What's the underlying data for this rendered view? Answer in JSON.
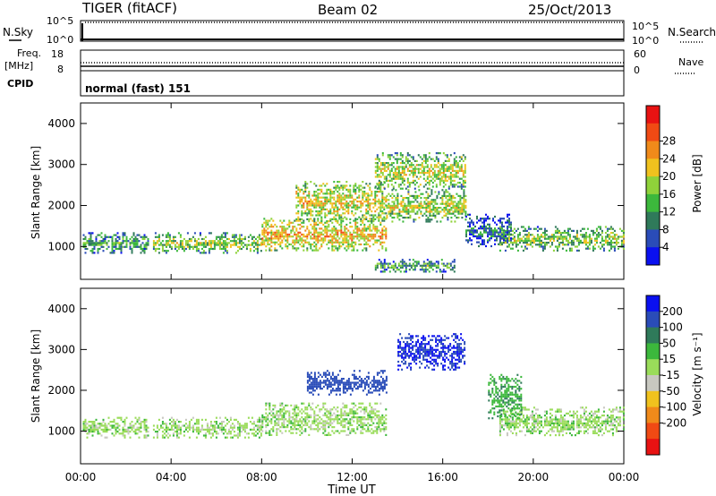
{
  "header": {
    "radar_title": "TIGER (fitACF)",
    "beam": "Beam 02",
    "date": "25/Oct/2013"
  },
  "status_panels": {
    "nsky_label": "N.Sky",
    "nsky_ticks": [
      "10^5",
      "10^0"
    ],
    "nsearch_label": "N.Search",
    "nsearch_ticks": [
      "10^5",
      "10^0"
    ],
    "freq_label_line1": "Freq.",
    "freq_label_line2": "[MHz]",
    "freq_ticks": [
      "18",
      "8"
    ],
    "nave_label": "Nave",
    "nave_ticks": [
      "60",
      "0"
    ],
    "cpid_label": "CPID",
    "cpid_value": "normal (fast) 151"
  },
  "x_axis": {
    "label": "Time UT",
    "ticks": [
      "00:00",
      "04:00",
      "08:00",
      "12:00",
      "16:00",
      "20:00",
      "00:00"
    ]
  },
  "y_axis": {
    "label": "Slant Range [km]",
    "ticks": [
      "1000",
      "2000",
      "3000",
      "4000"
    ]
  },
  "power_scale": {
    "label": "Power [dB]",
    "ticks": [
      "4",
      "8",
      "12",
      "16",
      "20",
      "24",
      "28"
    ],
    "colors": [
      "#0a10f0",
      "#2a4cb8",
      "#2f7a5a",
      "#3cb83c",
      "#8fd23a",
      "#f0c21e",
      "#f08a1a",
      "#f04a14",
      "#e81212"
    ]
  },
  "velocity_scale": {
    "label": "Velocity [m s⁻¹]",
    "ticks": [
      "200",
      "100",
      "50",
      "15",
      "-15",
      "-50",
      "-100",
      "-200"
    ],
    "colors": [
      "#0a10f0",
      "#2a4cb8",
      "#2f7a5a",
      "#3cb83c",
      "#9adc5a",
      "#c8c8c0",
      "#f0c21e",
      "#f08a1a",
      "#f04a14",
      "#e81212"
    ]
  },
  "chart_data": [
    {
      "type": "heatmap",
      "name_printed": "Power [dB]",
      "x_unit": "hours UT",
      "xlim": [
        0,
        24
      ],
      "ylim": [
        200,
        4500
      ],
      "ylabel": "Slant Range [km]",
      "xlabel": "Time UT",
      "colorbar_ticks": [
        4,
        8,
        12,
        16,
        20,
        24,
        28
      ],
      "scatter_bands": [
        {
          "t_start": 0.1,
          "t_end": 3.0,
          "r_low": 850,
          "r_high": 1350,
          "power": 14
        },
        {
          "t_start": 3.2,
          "t_end": 8.0,
          "r_low": 850,
          "r_high": 1350,
          "power": 18
        },
        {
          "t_start": 8.0,
          "t_end": 13.5,
          "r_low": 900,
          "r_high": 1700,
          "power": 24
        },
        {
          "t_start": 13.5,
          "t_end": 17.0,
          "r_low": 1600,
          "r_high": 2400,
          "power": 20
        },
        {
          "t_start": 9.5,
          "t_end": 13.5,
          "r_low": 1600,
          "r_high": 2600,
          "power": 22
        },
        {
          "t_start": 13.0,
          "t_end": 17.0,
          "r_low": 2400,
          "r_high": 3300,
          "power": 20
        },
        {
          "t_start": 18.5,
          "t_end": 24.0,
          "r_low": 900,
          "r_high": 1500,
          "power": 18
        },
        {
          "t_start": 17.0,
          "t_end": 19.0,
          "r_low": 1000,
          "r_high": 1800,
          "power": 10
        },
        {
          "t_start": 13.0,
          "t_end": 16.5,
          "r_low": 400,
          "r_high": 700,
          "power": 14
        }
      ]
    },
    {
      "type": "heatmap",
      "name_printed": "Velocity [m s⁻¹]",
      "x_unit": "hours UT",
      "xlim": [
        0,
        24
      ],
      "ylim": [
        200,
        4500
      ],
      "ylabel": "Slant Range [km]",
      "xlabel": "Time UT",
      "colorbar_ticks": [
        200,
        100,
        50,
        15,
        -15,
        -50,
        -100,
        -200
      ],
      "scatter_bands": [
        {
          "t_start": 0.1,
          "t_end": 3.0,
          "r_low": 850,
          "r_high": 1350,
          "velocity": 0
        },
        {
          "t_start": 3.2,
          "t_end": 8.0,
          "r_low": 850,
          "r_high": 1350,
          "velocity": 0
        },
        {
          "t_start": 8.0,
          "t_end": 13.5,
          "r_low": 900,
          "r_high": 1700,
          "velocity": 0
        },
        {
          "t_start": 10.0,
          "t_end": 13.5,
          "r_low": 1900,
          "r_high": 2500,
          "velocity": 150
        },
        {
          "t_start": 14.0,
          "t_end": 17.0,
          "r_low": 2500,
          "r_high": 3400,
          "velocity": 200
        },
        {
          "t_start": 18.5,
          "t_end": 24.0,
          "r_low": 900,
          "r_high": 1600,
          "velocity": 0
        },
        {
          "t_start": 18.0,
          "t_end": 19.5,
          "r_low": 1300,
          "r_high": 2400,
          "velocity": 40
        }
      ]
    }
  ]
}
